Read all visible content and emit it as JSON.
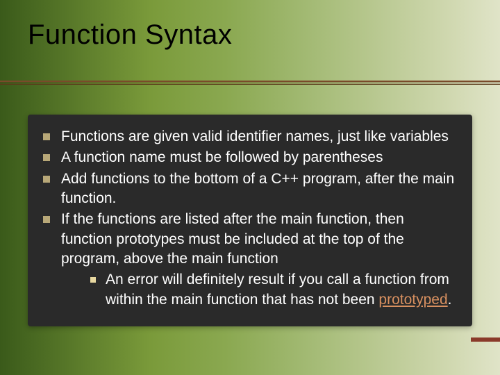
{
  "slide": {
    "title": "Function Syntax",
    "title_color": "#000000",
    "title_fontsize": 40,
    "background_gradient": [
      "#3a5a1a",
      "#5a7a2a",
      "#7a9a3a",
      "#8aa850",
      "#a0b870",
      "#b8c890",
      "#d0d8b0",
      "#e0e4c8"
    ],
    "divider_color": "#7a4a2a",
    "content_background": "#2a2a2a",
    "text_color": "#ffffff",
    "bullet_color": "#b8a878",
    "sub_bullet_color": "#e8d8a0",
    "link_color": "#d89060",
    "body_fontsize": 21,
    "footer_accent_color": "#8a3a2a",
    "bullets": [
      {
        "text": "Functions are given valid identifier names, just like variables"
      },
      {
        "text": "A function name must be followed by parentheses"
      },
      {
        "text": "Add functions to the bottom of a C++ program, after the main function."
      },
      {
        "text": "If the functions are listed after the main function, then function prototypes must be included at the top of the program, above the main function",
        "sub": [
          {
            "prefix": "An error will definitely result if you call a function from within the main function that has not been ",
            "link_text": "prototyped",
            "suffix": "."
          }
        ]
      }
    ]
  }
}
